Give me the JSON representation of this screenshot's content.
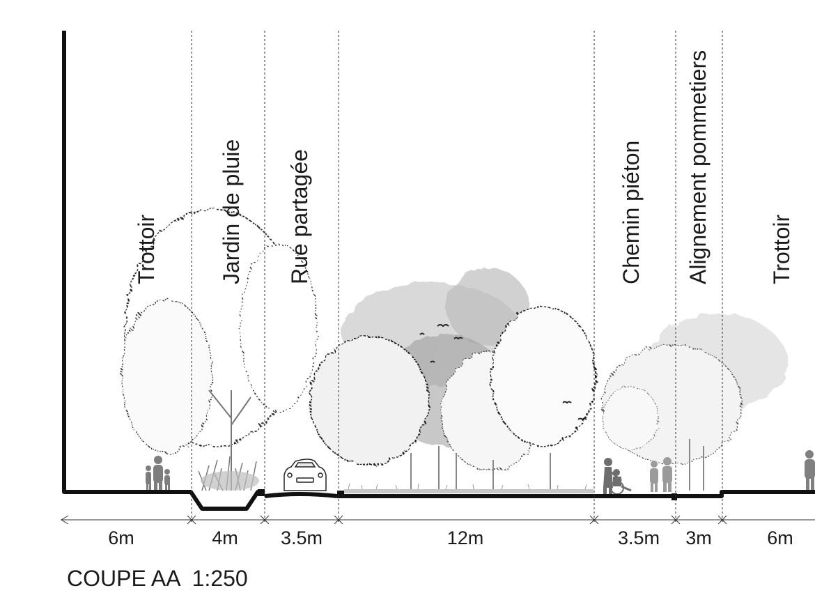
{
  "zones": [
    {
      "id": "trottoir-left",
      "label": "Trottoir",
      "width": "6m"
    },
    {
      "id": "jardin-de-pluie",
      "label": "Jardin de pluie",
      "width": "4m"
    },
    {
      "id": "rue-partagee",
      "label": "Rue partagée",
      "width": "3.5m"
    },
    {
      "id": "parc",
      "label": "",
      "width": "12m"
    },
    {
      "id": "chemin-pieton",
      "label": "Chemin piéton",
      "width": "3.5m"
    },
    {
      "id": "alignement-pommetiers",
      "label": "Alignement pommetiers",
      "width": "3m"
    },
    {
      "id": "trottoir-right",
      "label": "Trottoir",
      "width": "6m"
    }
  ],
  "caption": "COUPE AA  1:250",
  "colors": {
    "ink": "#111111",
    "dashed": "#333333",
    "foliage_light": "#f4f4f4",
    "foliage_mid": "#c8c8c8",
    "foliage_dark": "#8f8f8f",
    "water": "#a9a9a9",
    "figures": "#8a8a8a"
  }
}
